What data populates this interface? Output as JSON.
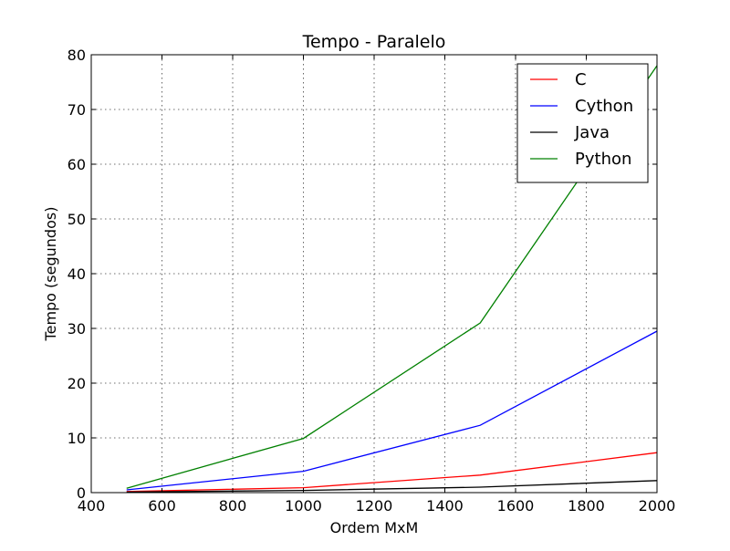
{
  "chart_data": {
    "type": "line",
    "title": "Tempo - Paralelo",
    "xlabel": "Ordem MxM",
    "ylabel": "Tempo (segundos)",
    "xlim": [
      400,
      2000
    ],
    "ylim": [
      0,
      80
    ],
    "xticks": [
      400,
      600,
      800,
      1000,
      1200,
      1400,
      1600,
      1800,
      2000
    ],
    "yticks": [
      0,
      10,
      20,
      30,
      40,
      50,
      60,
      70,
      80
    ],
    "grid": true,
    "legend_position": "top-right",
    "x": [
      500,
      1000,
      1500,
      2000
    ],
    "series": [
      {
        "name": "C",
        "color": "#ff0000",
        "values": [
          0.2,
          0.9,
          3.2,
          7.3
        ]
      },
      {
        "name": "Cython",
        "color": "#0000ff",
        "values": [
          0.5,
          3.9,
          12.3,
          29.5
        ]
      },
      {
        "name": "Java",
        "color": "#000000",
        "values": [
          0.1,
          0.4,
          1.0,
          2.2
        ]
      },
      {
        "name": "Python",
        "color": "#008000",
        "values": [
          0.8,
          9.9,
          31.0,
          78.0
        ]
      }
    ]
  }
}
